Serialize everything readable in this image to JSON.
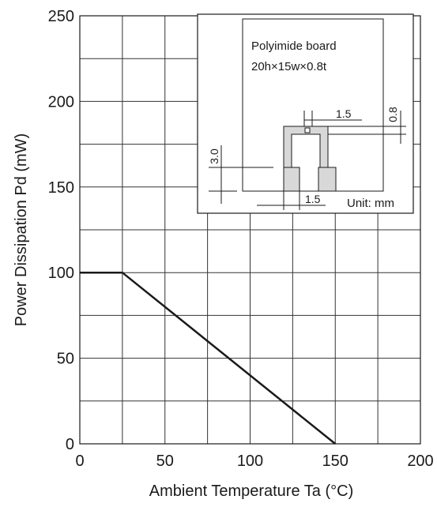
{
  "chart_data": {
    "type": "line",
    "xlabel": "Ambient Temperature Ta (°C)",
    "ylabel": "Power Dissipation   Pd   (mW)",
    "xlim": [
      0,
      200
    ],
    "ylim": [
      0,
      250
    ],
    "x_ticks": [
      "0",
      "50",
      "100",
      "150",
      "200"
    ],
    "y_ticks": [
      "0",
      "50",
      "100",
      "150",
      "200",
      "250"
    ],
    "grid": true,
    "grid_x_step": 25,
    "grid_y_step": 25,
    "series": [
      {
        "x": [
          0,
          25,
          150
        ],
        "y": [
          100,
          100,
          0
        ]
      }
    ],
    "inset": {
      "board_name": "Polyimide board",
      "board_size": "20h×15w×0.8t",
      "unit": "Unit: mm",
      "dimensions": [
        "1.5",
        "0.8",
        "3.0",
        "1.5"
      ]
    }
  }
}
